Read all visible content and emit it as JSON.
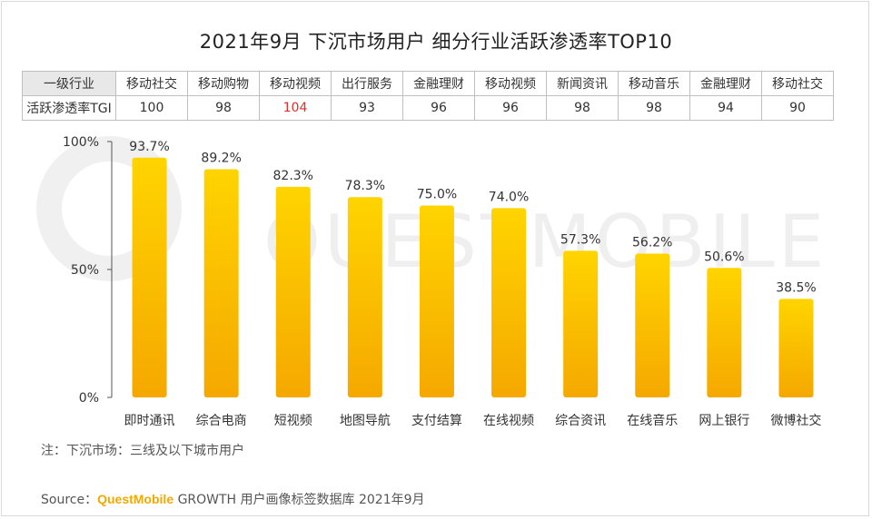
{
  "title": "2021年9月 下沉市场用户 细分行业活跃渗透率TOP10",
  "table": {
    "header_label": "一级行业",
    "row_label": "活跃渗透率TGI",
    "industries": [
      "移动社交",
      "移动购物",
      "移动视频",
      "出行服务",
      "金融理财",
      "移动视频",
      "新闻资讯",
      "移动音乐",
      "金融理财",
      "移动社交"
    ],
    "tgi": [
      "100",
      "98",
      "104",
      "93",
      "96",
      "96",
      "98",
      "98",
      "94",
      "90"
    ],
    "highlight_index": 2,
    "highlight_color": "#e0302a"
  },
  "chart_data": {
    "type": "bar",
    "categories": [
      "即时通讯",
      "综合电商",
      "短视频",
      "地图导航",
      "支付结算",
      "在线视频",
      "综合资讯",
      "在线音乐",
      "网上银行",
      "微博社交"
    ],
    "values": [
      93.7,
      89.2,
      82.3,
      78.3,
      75.0,
      74.0,
      57.3,
      56.2,
      50.6,
      38.5
    ],
    "value_labels": [
      "93.7%",
      "89.2%",
      "82.3%",
      "78.3%",
      "75.0%",
      "74.0%",
      "57.3%",
      "56.2%",
      "50.6%",
      "38.5%"
    ],
    "ylim": [
      0,
      100
    ],
    "yticks": [
      0,
      50,
      100
    ],
    "ytick_labels": [
      "0%",
      "50%",
      "100%"
    ],
    "bar_color_top": "#ffd400",
    "bar_color_bottom": "#f5a800",
    "grid": false,
    "legend": "none"
  },
  "watermark": "QUESTMOBILE",
  "note": "注：下沉市场：三线及以下城市用户",
  "source": {
    "prefix": "Source：",
    "brand": "QuestMobile",
    "text": "GROWTH 用户画像标签数据库 2021年9月",
    "brand_color": "#f2a900"
  }
}
